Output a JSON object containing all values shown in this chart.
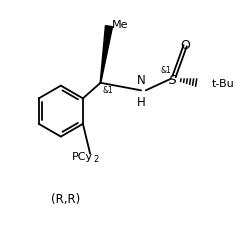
{
  "bg_color": "#ffffff",
  "line_color": "#000000",
  "figsize": [
    2.38,
    2.28
  ],
  "dpi": 100,
  "annotation": "(R,R)",
  "label_Me": "Me",
  "label_NH": "NH",
  "label_H": "H",
  "label_S": "S",
  "label_O": "O",
  "label_tBu": "t-Bu",
  "label_PCy2": "PCy2",
  "label_stereo1": "&1",
  "label_stereo2": "&1"
}
